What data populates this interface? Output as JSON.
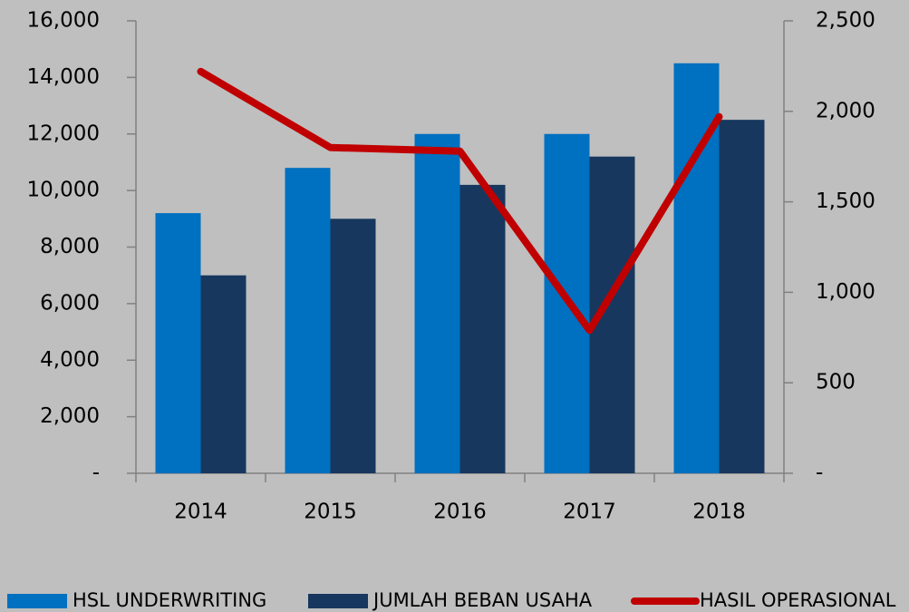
{
  "chart_data": {
    "type": "bar",
    "categories": [
      "2014",
      "2015",
      "2016",
      "2017",
      "2018"
    ],
    "series": [
      {
        "name": "HSL UNDERWRITING",
        "color": "#0070c0",
        "type": "bar",
        "values": [
          9200,
          10800,
          12000,
          12000,
          14500
        ]
      },
      {
        "name": "JUMLAH BEBAN USAHA",
        "color": "#17375e",
        "type": "bar",
        "values": [
          7000,
          9000,
          10200,
          11200,
          12500
        ]
      },
      {
        "name": "HASIL OPERASIONAL",
        "color": "#c00000",
        "type": "line",
        "axis": "y2",
        "values": [
          2220,
          1800,
          1780,
          790,
          1970
        ]
      }
    ],
    "ylim": [
      0,
      16000
    ],
    "yticks": [
      {
        "value": 0,
        "label": "-"
      },
      {
        "value": 2000,
        "label": "2,000"
      },
      {
        "value": 4000,
        "label": "4,000"
      },
      {
        "value": 6000,
        "label": "6,000"
      },
      {
        "value": 8000,
        "label": "8,000"
      },
      {
        "value": 10000,
        "label": "10,000"
      },
      {
        "value": 12000,
        "label": "12,000"
      },
      {
        "value": 14000,
        "label": "14,000"
      },
      {
        "value": 16000,
        "label": "16,000"
      }
    ],
    "y2lim": [
      0,
      2500
    ],
    "y2ticks": [
      {
        "value": 0,
        "label": "-"
      },
      500,
      {
        "value": 1000,
        "label": "1,000"
      },
      {
        "value": 1500,
        "label": "1,500"
      },
      {
        "value": 2000,
        "label": "2,000"
      },
      {
        "value": 2500,
        "label": "2,500"
      }
    ],
    "legend": "bottom"
  }
}
